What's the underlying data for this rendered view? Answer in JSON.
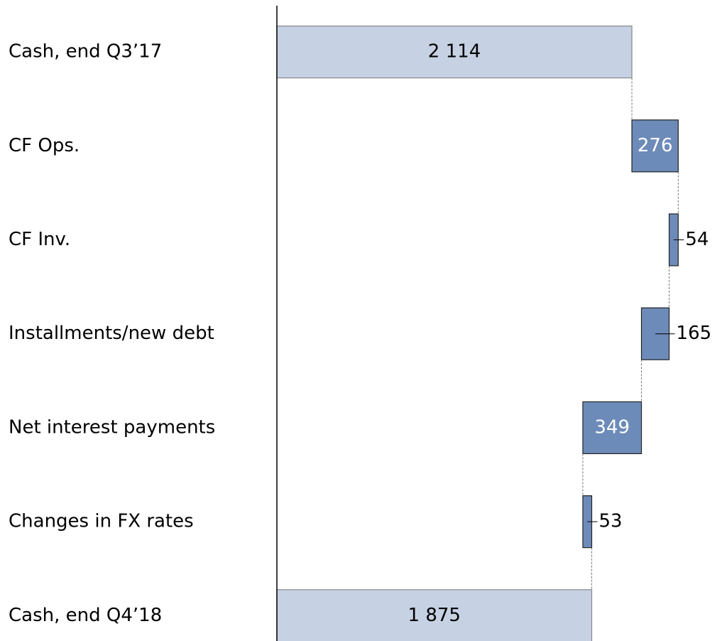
{
  "chart_data": {
    "type": "waterfall",
    "orientation": "horizontal",
    "categories": [
      "Cash, end Q3’17",
      "CF Ops.",
      "CF Inv.",
      "Installments/new debt",
      "Net interest payments",
      "Changes in FX rates",
      "Cash, end Q4’18"
    ],
    "measure": [
      "total",
      "relative",
      "relative",
      "relative",
      "relative",
      "relative",
      "total"
    ],
    "values": [
      2114,
      276,
      -54,
      -165,
      -349,
      53,
      1875
    ],
    "value_labels": [
      "2 114",
      "276",
      "54",
      "165",
      "349",
      "53",
      "1 875"
    ],
    "total_color": "#c6d1e3",
    "delta_color": "#6d8bb9",
    "xlim": [
      0,
      2600
    ],
    "grid": false
  }
}
